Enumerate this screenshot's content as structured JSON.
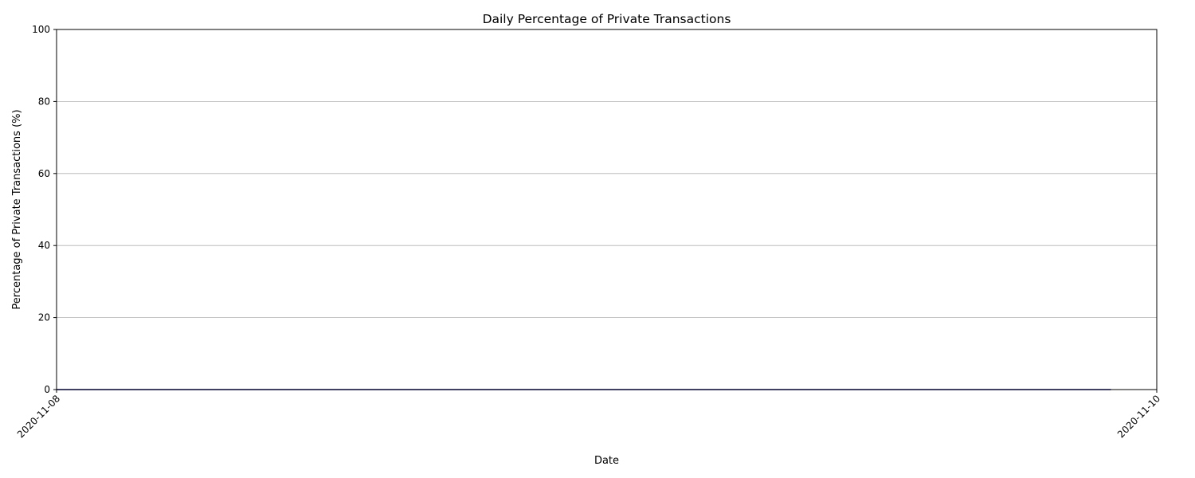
{
  "chart_data": {
    "type": "line",
    "title": "Daily Percentage of Private Transactions",
    "xlabel": "Date",
    "ylabel": "Percentage of Private Transactions (%)",
    "x_ticks": [
      "2020-11-08",
      "2020-11-10"
    ],
    "y_ticks": [
      0,
      20,
      40,
      60,
      80,
      100
    ],
    "xlim": [
      "2020-11-08",
      "2020-11-10"
    ],
    "ylim": [
      0,
      100
    ],
    "grid": "y",
    "legend": "none",
    "series": [
      {
        "color": "#00008b",
        "points": [
          {
            "x": "2020-11-08",
            "y": 0
          },
          {
            "x": "2020-11-09",
            "y": 0
          },
          {
            "x": "2020-11-09T22:00",
            "y": 0
          }
        ]
      }
    ]
  }
}
